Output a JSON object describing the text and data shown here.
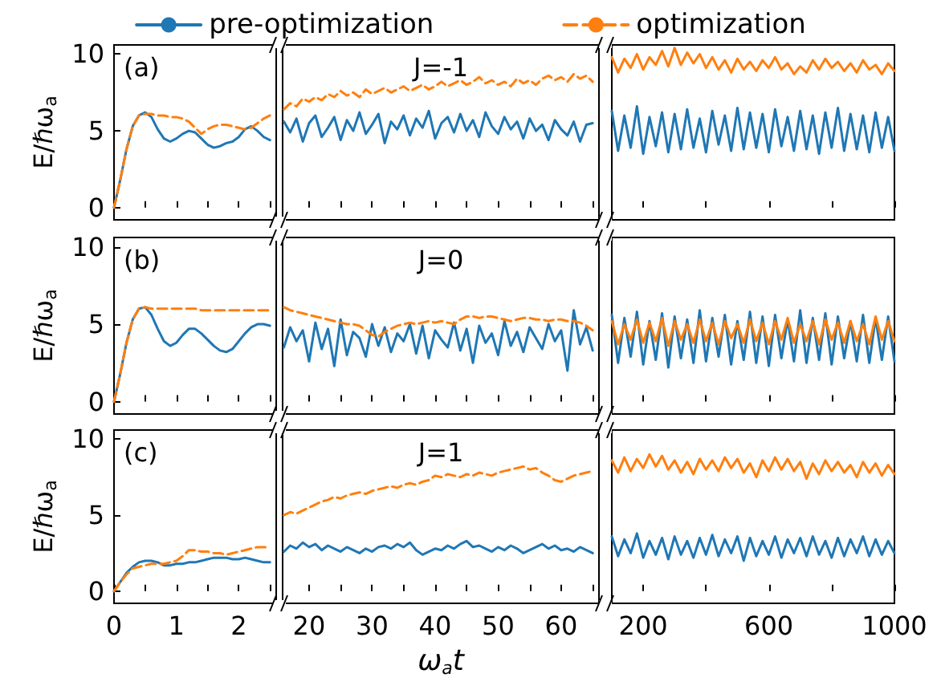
{
  "chart_data": [
    {
      "type": "line",
      "ylabel": "E/ℏω$_{a}$",
      "annotations": [
        "(a)"
      ],
      "legend": "top",
      "tick_labels": "y",
      "xlim": [
        0,
        2.6
      ],
      "xticks": [
        0,
        {
          "value": 0.5,
          "label": null
        },
        1,
        {
          "value": 1.5,
          "label": null
        },
        2,
        {
          "value": 2.5,
          "label": null
        }
      ],
      "ylim": [
        -0.8,
        10.6
      ],
      "yticks": [
        0,
        5,
        10
      ],
      "x": [
        0,
        0.1,
        0.2,
        0.3,
        0.4,
        0.5,
        0.6,
        0.7,
        0.8,
        0.9,
        1.0,
        1.1,
        1.2,
        1.3,
        1.4,
        1.5,
        1.6,
        1.7,
        1.8,
        1.9,
        2.0,
        2.1,
        2.2,
        2.3,
        2.4,
        2.5
      ],
      "series": [
        {
          "name": "pre-optimization",
          "color": "#1f77b4",
          "line_style": "solid",
          "values": [
            0,
            1.8,
            3.8,
            5.3,
            6.0,
            6.2,
            5.9,
            5.1,
            4.5,
            4.3,
            4.5,
            4.8,
            5.0,
            4.9,
            4.5,
            4.1,
            3.9,
            4.0,
            4.2,
            4.3,
            4.6,
            5.1,
            5.3,
            5.0,
            4.6,
            4.4
          ]
        },
        {
          "name": "optimization",
          "color": "#ff7f0e",
          "line_style": "dashed",
          "values": [
            0,
            1.8,
            3.8,
            5.3,
            6.0,
            6.1,
            6.1,
            6.0,
            6.0,
            5.9,
            5.9,
            5.8,
            5.6,
            5.2,
            4.8,
            5.1,
            5.3,
            5.4,
            5.4,
            5.3,
            5.2,
            5.1,
            5.2,
            5.5,
            5.8,
            6.0
          ]
        }
      ]
    },
    {
      "type": "line",
      "annotations": [
        "J=-1"
      ],
      "tick_labels": false,
      "xlim": [
        15.8,
        66
      ],
      "xticks": [
        20,
        {
          "value": 25,
          "label": null
        },
        30,
        {
          "value": 35,
          "label": null
        },
        40,
        {
          "value": 45,
          "label": null
        },
        50,
        {
          "value": 55,
          "label": null
        },
        60,
        {
          "value": 65,
          "label": null
        }
      ],
      "ylim": [
        -0.8,
        10.6
      ],
      "yticks": [
        0,
        5,
        10
      ],
      "x": [
        16,
        17,
        18,
        19,
        20,
        21,
        22,
        23,
        24,
        25,
        26,
        27,
        28,
        29,
        30,
        31,
        32,
        33,
        34,
        35,
        36,
        37,
        38,
        39,
        40,
        41,
        42,
        43,
        44,
        45,
        46,
        47,
        48,
        49,
        50,
        51,
        52,
        53,
        54,
        55,
        56,
        57,
        58,
        59,
        60,
        61,
        62,
        63,
        64,
        65
      ],
      "series": [
        {
          "color": "#1f77b4",
          "line_style": "solid",
          "values": [
            5.6,
            4.9,
            5.8,
            4.3,
            5.5,
            6.0,
            4.6,
            5.2,
            5.9,
            4.4,
            5.7,
            5.0,
            6.2,
            4.8,
            5.4,
            6.1,
            4.2,
            5.6,
            5.1,
            6.0,
            4.7,
            5.8,
            5.2,
            6.3,
            4.5,
            5.5,
            5.9,
            4.9,
            6.1,
            5.0,
            5.7,
            4.6,
            6.2,
            5.3,
            4.8,
            5.9,
            5.1,
            5.6,
            4.5,
            5.8,
            5.0,
            5.4,
            4.4,
            5.7,
            5.1,
            4.7,
            5.6,
            4.3,
            5.4,
            5.5
          ]
        },
        {
          "color": "#ff7f0e",
          "line_style": "dashed",
          "values": [
            6.4,
            6.8,
            6.6,
            7.1,
            6.9,
            7.2,
            7.0,
            7.4,
            7.2,
            7.6,
            7.3,
            7.5,
            7.2,
            7.7,
            7.4,
            7.6,
            7.8,
            7.5,
            7.7,
            7.9,
            7.6,
            7.8,
            8.0,
            7.7,
            7.9,
            8.2,
            7.9,
            8.1,
            8.3,
            8.0,
            8.2,
            8.5,
            8.1,
            8.3,
            8.0,
            8.2,
            7.9,
            8.4,
            8.1,
            8.3,
            8.0,
            8.4,
            8.6,
            8.3,
            8.5,
            8.2,
            8.7,
            8.4,
            8.6,
            8.2
          ]
        }
      ]
    },
    {
      "type": "line",
      "tick_labels": false,
      "xlim": [
        100,
        1000
      ],
      "xticks": [
        200,
        {
          "value": 400,
          "label": null
        },
        600,
        {
          "value": 800,
          "label": null
        },
        1000
      ],
      "ylim": [
        -0.8,
        10.6
      ],
      "yticks": [
        0,
        5,
        10
      ],
      "x": [
        100,
        120,
        140,
        160,
        180,
        200,
        220,
        240,
        260,
        280,
        300,
        320,
        340,
        360,
        380,
        400,
        420,
        440,
        460,
        480,
        500,
        520,
        540,
        560,
        580,
        600,
        620,
        640,
        660,
        680,
        700,
        720,
        740,
        760,
        780,
        800,
        820,
        840,
        860,
        880,
        900,
        920,
        940,
        960,
        980,
        1000
      ],
      "series": [
        {
          "color": "#1f77b4",
          "line_style": "solid",
          "values": [
            6.3,
            3.7,
            6.0,
            3.9,
            6.6,
            3.5,
            5.9,
            4.0,
            6.2,
            3.6,
            6.1,
            3.8,
            6.4,
            3.9,
            5.8,
            3.6,
            6.3,
            4.1,
            6.0,
            3.7,
            6.5,
            3.8,
            6.2,
            3.9,
            6.1,
            3.6,
            6.4,
            4.0,
            5.9,
            3.7,
            6.3,
            3.8,
            6.0,
            3.5,
            6.2,
            3.9,
            6.5,
            3.7,
            6.1,
            3.8,
            6.0,
            3.6,
            6.2,
            3.9,
            5.9,
            3.7
          ]
        },
        {
          "color": "#ff7f0e",
          "line_style": "solid",
          "values": [
            9.8,
            8.8,
            9.7,
            9.1,
            10.0,
            9.0,
            9.8,
            9.3,
            10.2,
            9.2,
            10.4,
            9.3,
            10.1,
            9.4,
            10.0,
            9.1,
            9.8,
            9.0,
            9.6,
            8.8,
            9.7,
            9.0,
            9.5,
            8.9,
            9.6,
            9.1,
            9.8,
            9.0,
            9.4,
            8.7,
            9.2,
            8.8,
            9.6,
            9.0,
            9.7,
            9.1,
            9.5,
            8.9,
            9.4,
            8.8,
            9.6,
            9.0,
            9.3,
            8.7,
            9.4,
            8.9
          ]
        }
      ]
    },
    {
      "type": "line",
      "ylabel": "E/ℏω$_{a}$",
      "annotations": [
        "(b)"
      ],
      "tick_labels": "y",
      "xlim": [
        0,
        2.6
      ],
      "xticks": [
        0,
        {
          "value": 0.5,
          "label": null
        },
        1,
        {
          "value": 1.5,
          "label": null
        },
        2,
        {
          "value": 2.5,
          "label": null
        }
      ],
      "ylim": [
        -0.8,
        10.6
      ],
      "yticks": [
        0,
        5,
        10
      ],
      "x": [
        0,
        0.1,
        0.2,
        0.3,
        0.4,
        0.5,
        0.6,
        0.7,
        0.8,
        0.9,
        1.0,
        1.1,
        1.2,
        1.3,
        1.4,
        1.5,
        1.6,
        1.7,
        1.8,
        1.9,
        2.0,
        2.1,
        2.2,
        2.3,
        2.4,
        2.5
      ],
      "series": [
        {
          "color": "#1f77b4",
          "line_style": "solid",
          "values": [
            0,
            1.8,
            3.8,
            5.3,
            6.0,
            6.1,
            5.6,
            4.7,
            3.9,
            3.6,
            3.8,
            4.3,
            4.7,
            4.7,
            4.4,
            4.0,
            3.6,
            3.3,
            3.2,
            3.4,
            3.9,
            4.4,
            4.8,
            5.0,
            5.0,
            4.9
          ]
        },
        {
          "color": "#ff7f0e",
          "line_style": "dashed",
          "values": [
            0,
            1.8,
            3.8,
            5.3,
            6.0,
            6.1,
            6.0,
            6.0,
            6.0,
            6.0,
            6.0,
            6.0,
            6.0,
            6.0,
            5.9,
            5.9,
            5.9,
            5.9,
            5.9,
            5.9,
            5.9,
            5.9,
            5.9,
            5.9,
            5.9,
            5.9
          ]
        }
      ]
    },
    {
      "type": "line",
      "annotations": [
        "J=0"
      ],
      "tick_labels": false,
      "xlim": [
        15.8,
        66
      ],
      "xticks": [
        20,
        {
          "value": 25,
          "label": null
        },
        30,
        {
          "value": 35,
          "label": null
        },
        40,
        {
          "value": 45,
          "label": null
        },
        50,
        {
          "value": 55,
          "label": null
        },
        60,
        {
          "value": 65,
          "label": null
        }
      ],
      "ylim": [
        -0.8,
        10.6
      ],
      "yticks": [
        0,
        5,
        10
      ],
      "x": [
        16,
        17,
        18,
        19,
        20,
        21,
        22,
        23,
        24,
        25,
        26,
        27,
        28,
        29,
        30,
        31,
        32,
        33,
        34,
        35,
        36,
        37,
        38,
        39,
        40,
        41,
        42,
        43,
        44,
        45,
        46,
        47,
        48,
        49,
        50,
        51,
        52,
        53,
        54,
        55,
        56,
        57,
        58,
        59,
        60,
        61,
        62,
        63,
        64,
        65
      ],
      "series": [
        {
          "color": "#1f77b4",
          "line_style": "solid",
          "values": [
            3.5,
            4.8,
            3.9,
            4.6,
            2.6,
            5.1,
            3.4,
            4.7,
            2.3,
            5.3,
            3.0,
            4.5,
            4.1,
            2.9,
            5.0,
            3.6,
            4.8,
            3.2,
            4.4,
            3.9,
            5.0,
            3.1,
            4.9,
            2.8,
            4.6,
            4.0,
            3.5,
            5.1,
            3.3,
            4.7,
            2.5,
            4.9,
            3.8,
            4.4,
            3.0,
            5.2,
            3.6,
            4.5,
            3.2,
            4.8,
            4.1,
            3.4,
            5.0,
            3.9,
            4.6,
            2.0,
            5.9,
            3.7,
            4.8,
            3.3
          ]
        },
        {
          "color": "#ff7f0e",
          "line_style": "dashed",
          "values": [
            6.1,
            5.9,
            5.8,
            5.7,
            5.6,
            5.5,
            5.4,
            5.3,
            5.2,
            5.1,
            5.0,
            5.0,
            4.9,
            4.6,
            4.3,
            4.2,
            4.5,
            4.7,
            4.9,
            5.0,
            5.1,
            5.0,
            5.1,
            5.2,
            5.1,
            5.2,
            5.1,
            5.0,
            5.3,
            5.5,
            5.5,
            5.4,
            5.5,
            5.5,
            5.4,
            5.3,
            5.2,
            5.3,
            5.4,
            5.4,
            5.3,
            5.3,
            5.2,
            5.3,
            5.3,
            5.2,
            5.2,
            5.1,
            4.9,
            4.6
          ]
        }
      ]
    },
    {
      "type": "line",
      "tick_labels": false,
      "xlim": [
        100,
        1000
      ],
      "xticks": [
        200,
        {
          "value": 400,
          "label": null
        },
        600,
        {
          "value": 800,
          "label": null
        },
        1000
      ],
      "ylim": [
        -0.8,
        10.6
      ],
      "yticks": [
        0,
        5,
        10
      ],
      "x": [
        100,
        120,
        140,
        160,
        180,
        200,
        220,
        240,
        260,
        280,
        300,
        320,
        340,
        360,
        380,
        400,
        420,
        440,
        460,
        480,
        500,
        520,
        540,
        560,
        580,
        600,
        620,
        640,
        660,
        680,
        700,
        720,
        740,
        760,
        780,
        800,
        820,
        840,
        860,
        880,
        900,
        920,
        940,
        960,
        980,
        1000
      ],
      "series": [
        {
          "color": "#1f77b4",
          "line_style": "solid",
          "values": [
            5.6,
            2.5,
            5.4,
            2.9,
            5.8,
            2.4,
            5.2,
            2.7,
            5.7,
            2.2,
            5.5,
            2.8,
            5.3,
            2.5,
            5.9,
            2.6,
            5.4,
            2.9,
            5.6,
            2.4,
            5.2,
            2.7,
            5.8,
            2.5,
            5.5,
            2.3,
            5.6,
            2.8,
            5.3,
            2.6,
            5.9,
            2.5,
            5.4,
            2.7,
            5.7,
            2.4,
            5.5,
            2.8,
            5.2,
            2.6,
            5.6,
            2.5,
            5.4,
            2.7,
            5.5,
            2.6
          ]
        },
        {
          "color": "#ff7f0e",
          "line_style": "solid",
          "values": [
            5.2,
            3.7,
            5.0,
            4.0,
            5.3,
            3.8,
            5.1,
            3.9,
            5.4,
            3.6,
            5.2,
            4.0,
            5.0,
            3.8,
            5.3,
            3.9,
            5.1,
            3.7,
            5.2,
            4.1,
            5.0,
            3.8,
            5.3,
            3.9,
            5.1,
            3.7,
            5.2,
            4.0,
            5.4,
            3.8,
            5.0,
            3.9,
            5.2,
            3.7,
            5.3,
            4.0,
            5.1,
            3.8,
            5.2,
            3.9,
            5.0,
            3.7,
            5.5,
            4.0,
            5.2,
            3.9
          ]
        }
      ]
    },
    {
      "type": "line",
      "ylabel": "E/ℏω$_{a}$",
      "annotations": [
        "(c)"
      ],
      "xlim": [
        0,
        2.6
      ],
      "xticks": [
        0,
        {
          "value": 0.5,
          "label": null
        },
        1,
        {
          "value": 1.5,
          "label": null
        },
        2,
        {
          "value": 2.5,
          "label": null
        }
      ],
      "ylim": [
        -0.8,
        10.6
      ],
      "yticks": [
        0,
        5,
        10
      ],
      "x": [
        0,
        0.1,
        0.2,
        0.3,
        0.4,
        0.5,
        0.6,
        0.7,
        0.8,
        0.9,
        1.0,
        1.1,
        1.2,
        1.3,
        1.4,
        1.5,
        1.6,
        1.7,
        1.8,
        1.9,
        2.0,
        2.1,
        2.2,
        2.3,
        2.4,
        2.5
      ],
      "series": [
        {
          "color": "#1f77b4",
          "line_style": "solid",
          "values": [
            0,
            0.6,
            1.2,
            1.6,
            1.9,
            2.0,
            2.0,
            1.9,
            1.7,
            1.7,
            1.8,
            1.8,
            1.9,
            1.9,
            2.0,
            2.1,
            2.2,
            2.2,
            2.2,
            2.1,
            2.1,
            2.2,
            2.1,
            2.0,
            1.9,
            1.9
          ]
        },
        {
          "color": "#ff7f0e",
          "line_style": "dashed",
          "values": [
            0,
            0.6,
            1.1,
            1.5,
            1.6,
            1.7,
            1.8,
            1.8,
            1.8,
            1.9,
            2.0,
            2.3,
            2.7,
            2.7,
            2.6,
            2.6,
            2.5,
            2.5,
            2.4,
            2.5,
            2.6,
            2.7,
            2.8,
            2.9,
            2.9,
            2.9
          ]
        }
      ]
    },
    {
      "type": "line",
      "xlabel": "ω$_{a}$t",
      "annotations": [
        "J=1"
      ],
      "tick_labels": "x",
      "xlim": [
        15.8,
        66
      ],
      "xticks": [
        20,
        {
          "value": 25,
          "label": null
        },
        30,
        {
          "value": 35,
          "label": null
        },
        40,
        {
          "value": 45,
          "label": null
        },
        50,
        {
          "value": 55,
          "label": null
        },
        60,
        {
          "value": 65,
          "label": null
        }
      ],
      "ylim": [
        -0.8,
        10.6
      ],
      "yticks": [
        0,
        5,
        10
      ],
      "x": [
        16,
        17,
        18,
        19,
        20,
        21,
        22,
        23,
        24,
        25,
        26,
        27,
        28,
        29,
        30,
        31,
        32,
        33,
        34,
        35,
        36,
        37,
        38,
        39,
        40,
        41,
        42,
        43,
        44,
        45,
        46,
        47,
        48,
        49,
        50,
        51,
        52,
        53,
        54,
        55,
        56,
        57,
        58,
        59,
        60,
        61,
        62,
        63,
        64,
        65
      ],
      "series": [
        {
          "color": "#1f77b4",
          "line_style": "solid",
          "values": [
            2.6,
            3.0,
            2.8,
            3.2,
            2.9,
            3.1,
            2.7,
            3.0,
            2.8,
            2.6,
            2.9,
            2.7,
            2.5,
            2.8,
            2.6,
            2.9,
            3.0,
            2.8,
            3.1,
            2.9,
            3.2,
            2.7,
            2.4,
            2.6,
            2.8,
            2.7,
            3.0,
            2.8,
            3.1,
            3.3,
            2.9,
            3.0,
            2.8,
            2.6,
            2.9,
            2.7,
            3.0,
            2.8,
            2.5,
            2.7,
            2.9,
            3.1,
            2.8,
            3.0,
            2.7,
            2.8,
            2.6,
            2.9,
            2.7,
            2.5
          ]
        },
        {
          "color": "#ff7f0e",
          "line_style": "dashed",
          "values": [
            5.0,
            5.2,
            5.1,
            5.3,
            5.5,
            5.7,
            5.9,
            6.0,
            6.2,
            6.1,
            6.3,
            6.4,
            6.5,
            6.4,
            6.6,
            6.7,
            6.8,
            6.9,
            6.8,
            7.0,
            7.1,
            7.0,
            7.2,
            7.3,
            7.6,
            7.5,
            7.7,
            7.6,
            7.5,
            7.7,
            7.6,
            7.8,
            7.7,
            7.6,
            7.8,
            7.9,
            8.0,
            8.1,
            8.2,
            8.0,
            8.1,
            7.8,
            7.6,
            7.3,
            7.2,
            7.4,
            7.6,
            7.7,
            7.8,
            7.9
          ]
        }
      ]
    },
    {
      "type": "line",
      "tick_labels": "x",
      "xlim": [
        100,
        1000
      ],
      "xticks": [
        200,
        {
          "value": 400,
          "label": null
        },
        600,
        {
          "value": 800,
          "label": null
        },
        1000
      ],
      "ylim": [
        -0.8,
        10.6
      ],
      "yticks": [
        0,
        5,
        10
      ],
      "x": [
        100,
        120,
        140,
        160,
        180,
        200,
        220,
        240,
        260,
        280,
        300,
        320,
        340,
        360,
        380,
        400,
        420,
        440,
        460,
        480,
        500,
        520,
        540,
        560,
        580,
        600,
        620,
        640,
        660,
        680,
        700,
        720,
        740,
        760,
        780,
        800,
        820,
        840,
        860,
        880,
        900,
        920,
        940,
        960,
        980,
        1000
      ],
      "series": [
        {
          "color": "#1f77b4",
          "line_style": "solid",
          "values": [
            3.6,
            2.3,
            3.4,
            2.5,
            3.8,
            2.2,
            3.3,
            2.4,
            3.5,
            2.1,
            3.6,
            2.4,
            3.3,
            2.2,
            3.5,
            2.4,
            3.7,
            2.3,
            3.4,
            2.5,
            3.6,
            2.0,
            3.5,
            2.3,
            3.3,
            2.4,
            3.6,
            2.2,
            3.4,
            2.5,
            3.5,
            2.3,
            3.6,
            2.4,
            3.3,
            2.2,
            3.5,
            2.3,
            3.4,
            2.5,
            3.6,
            2.3,
            3.4,
            2.4,
            3.3,
            2.5
          ]
        },
        {
          "color": "#ff7f0e",
          "line_style": "solid",
          "values": [
            8.6,
            7.8,
            8.8,
            7.9,
            8.7,
            8.1,
            9.0,
            8.2,
            8.9,
            8.0,
            8.6,
            7.8,
            8.5,
            7.7,
            8.7,
            8.0,
            8.6,
            7.9,
            8.8,
            8.1,
            8.7,
            7.8,
            8.4,
            7.5,
            8.6,
            7.9,
            8.8,
            8.0,
            8.7,
            7.9,
            8.5,
            7.4,
            8.4,
            7.7,
            8.6,
            7.9,
            8.5,
            7.8,
            8.3,
            7.5,
            8.5,
            7.8,
            8.4,
            7.6,
            8.3,
            7.7
          ]
        }
      ]
    }
  ]
}
